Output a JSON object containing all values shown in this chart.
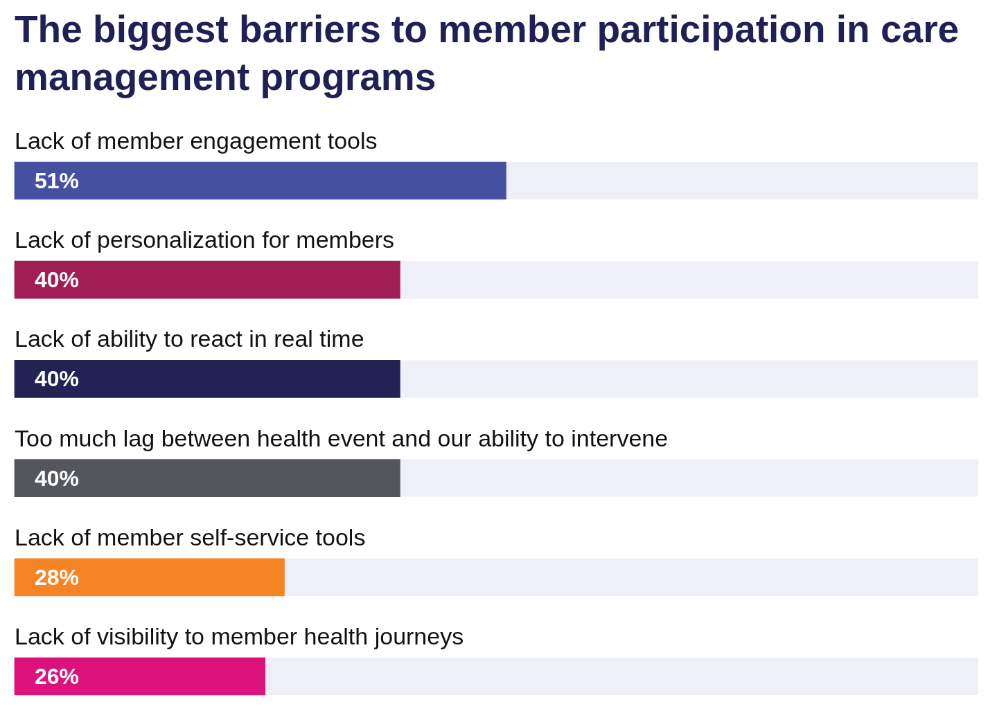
{
  "chart_data": {
    "type": "bar",
    "orientation": "horizontal",
    "title": "The biggest barriers to member participation in care management programs",
    "categories": [
      "Lack of member engagement tools",
      "Lack of personalization for members",
      "Lack of ability to react in real time",
      "Too much lag between health event and our ability to intervene",
      "Lack of member self-service tools",
      "Lack of visibility to member health journeys"
    ],
    "values": [
      51,
      40,
      40,
      40,
      28,
      26
    ],
    "colors": [
      "#4650a0",
      "#a01e55",
      "#232255",
      "#55565b",
      "#f58424",
      "#dc117c"
    ],
    "value_labels": [
      "51%",
      "40%",
      "40%",
      "40%",
      "28%",
      "26%"
    ],
    "xlim": [
      0,
      100
    ],
    "tick_labels": "y",
    "grid": false,
    "legend": false
  }
}
